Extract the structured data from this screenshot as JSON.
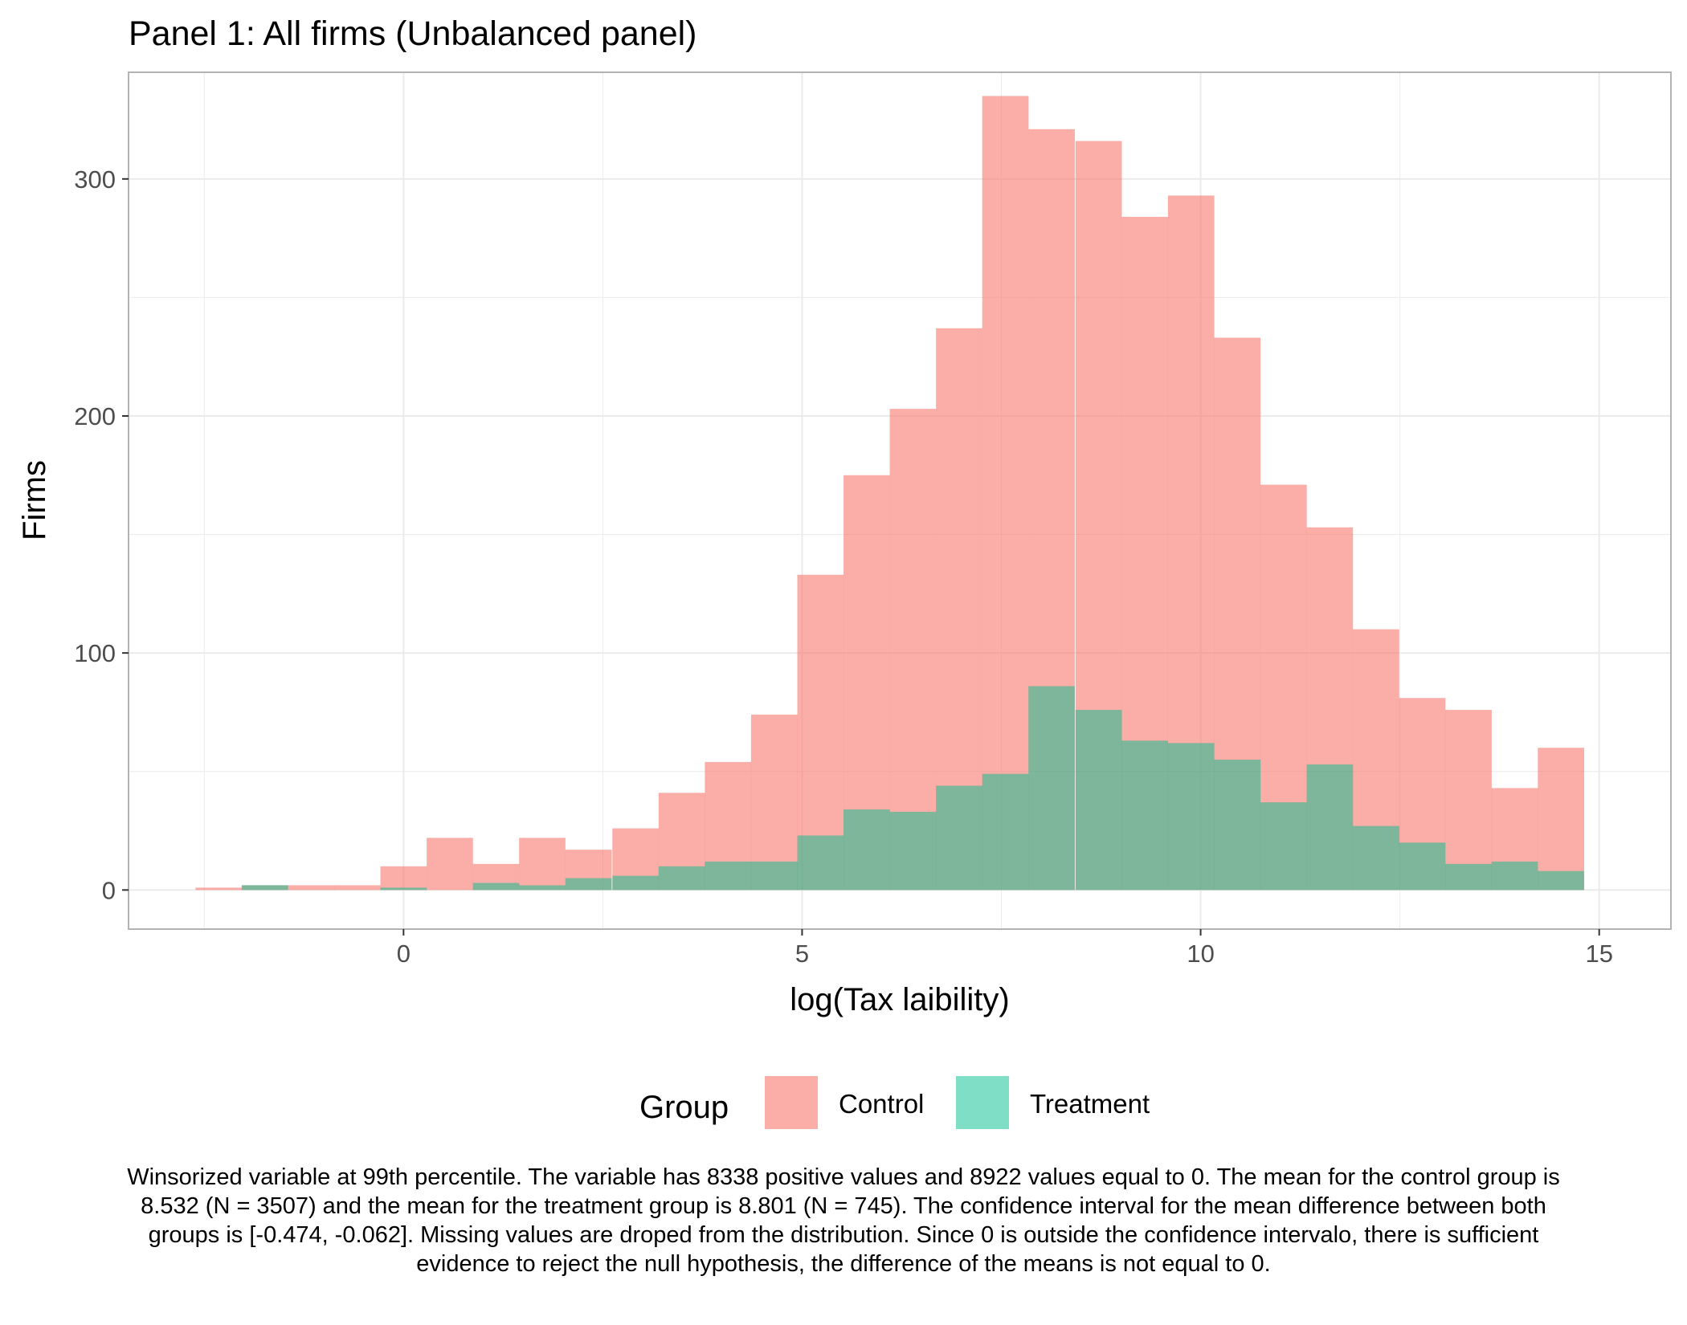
{
  "chart_data": {
    "type": "bar",
    "title": "Panel 1: All firms (Unbalanced panel)",
    "xlabel": "log(Tax laibility)",
    "ylabel": "Firms",
    "xlim": [
      -3.45,
      15.9
    ],
    "ylim": [
      -16.5,
      345
    ],
    "x_ticks": [
      0,
      5,
      10,
      15
    ],
    "y_ticks": [
      0,
      100,
      200,
      300
    ],
    "x_tick_labels": [
      "0",
      "5",
      "10",
      "15"
    ],
    "y_tick_labels": [
      "0",
      "100",
      "200",
      "300"
    ],
    "grid": true,
    "legend": {
      "title": "Group",
      "position": "bottom",
      "entries": [
        "Control",
        "Treatment"
      ]
    },
    "bin_width": 0.5814,
    "bin_left_edges": [
      -2.61,
      -2.03,
      -1.45,
      -0.87,
      -0.29,
      0.29,
      0.87,
      1.45,
      2.03,
      2.62,
      3.2,
      3.78,
      4.36,
      4.94,
      5.52,
      6.1,
      6.68,
      7.26,
      7.84,
      8.43,
      9.01,
      9.59,
      10.17,
      10.75,
      11.33,
      11.91,
      12.49,
      13.07,
      13.65,
      14.23
    ],
    "series": [
      {
        "name": "Control",
        "color": "#F8766D",
        "opacity": 0.6,
        "values": [
          1,
          2,
          2,
          2,
          10,
          22,
          11,
          22,
          17,
          26,
          41,
          54,
          74,
          133,
          175,
          203,
          237,
          335,
          321,
          316,
          284,
          293,
          233,
          171,
          153,
          110,
          81,
          76,
          43,
          60
        ]
      },
      {
        "name": "Treatment",
        "color": "#00BF8E",
        "opacity": 0.5,
        "values": [
          0,
          2,
          0,
          0,
          1,
          0,
          3,
          2,
          5,
          6,
          10,
          12,
          12,
          23,
          34,
          33,
          44,
          49,
          86,
          76,
          63,
          62,
          55,
          37,
          53,
          27,
          20,
          11,
          12,
          8
        ]
      }
    ]
  },
  "caption": "Winsorized variable at 99th percentile. The variable has 8338 positive values and 8922 values equal to 0. The mean for the control group is 8.532 (N = 3507) and the mean for the treatment group is 8.801 (N = 745). The confidence interval for the mean difference between both groups is [-0.474, -0.062]. Missing values are droped from the distribution. Since 0 is outside the confidence intervalo, there is sufficient evidence to reject the null hypothesis, the difference of the means is not equal to 0."
}
